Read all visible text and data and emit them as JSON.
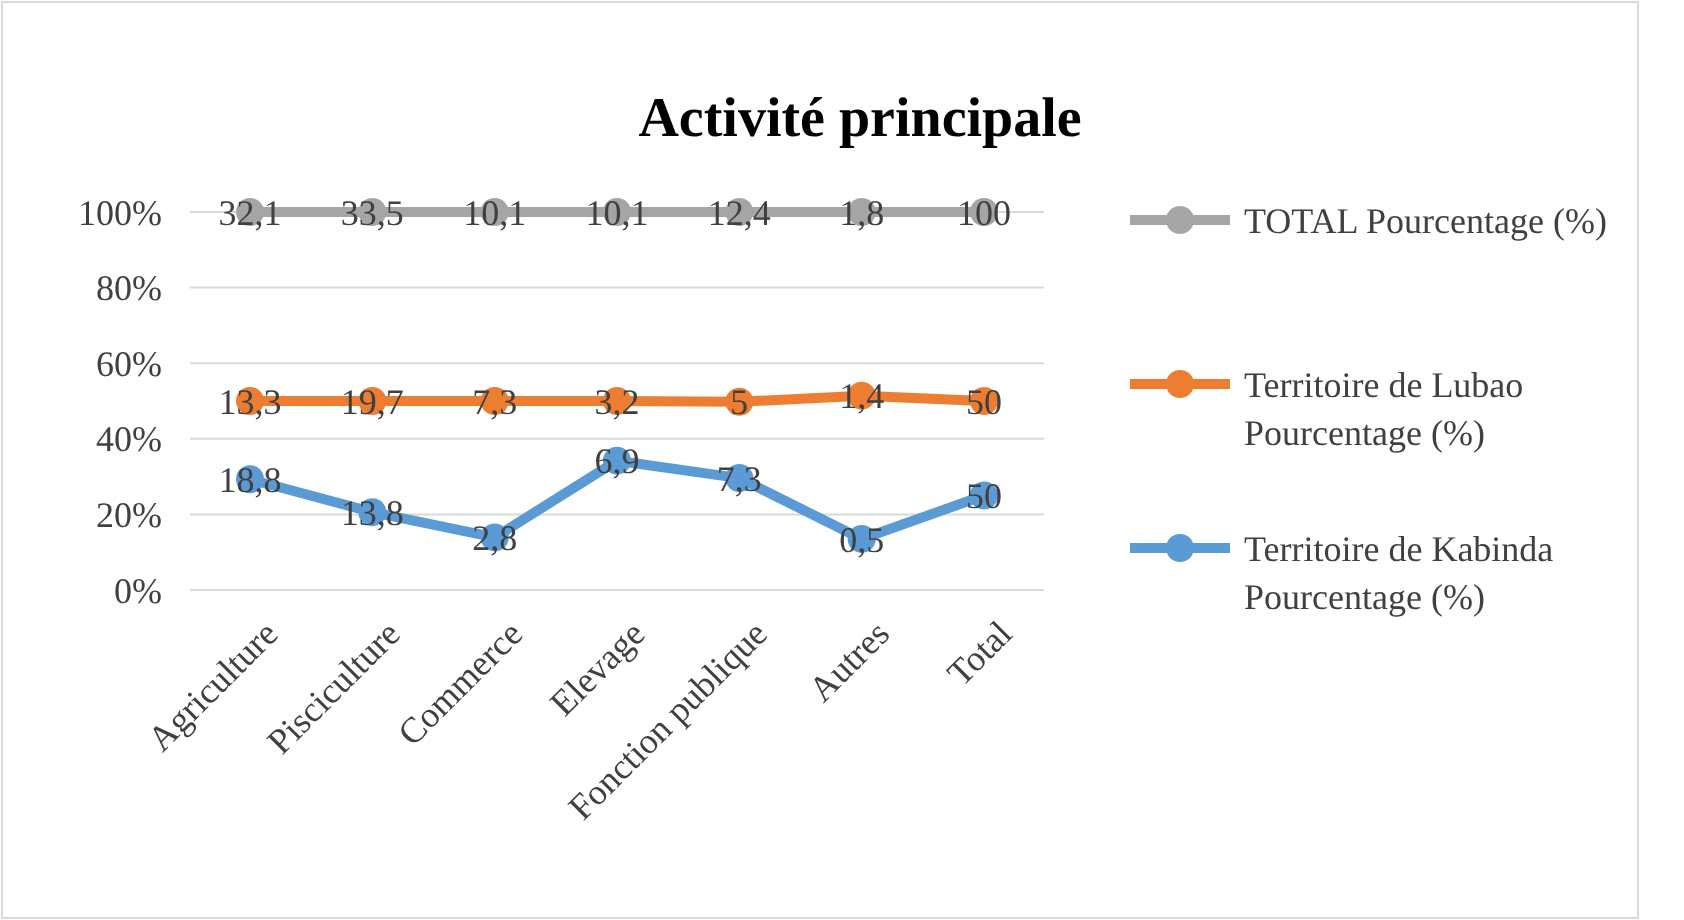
{
  "chart_data": {
    "type": "line",
    "title": "Activité principale",
    "categories": [
      "Agriculture",
      "Pisciculture",
      "Commerce",
      "Elevage",
      "Fonction publique",
      "Autres",
      "Total"
    ],
    "series": [
      {
        "name": "TOTAL Pourcentage (%)",
        "color": "#a5a5a5",
        "values": [
          100,
          100,
          100,
          100,
          100,
          100,
          100
        ]
      },
      {
        "name": "Territoire de Lubao Pourcentage (%)",
        "color": "#ed7d31",
        "values": [
          50,
          50,
          50,
          50,
          49.8,
          51.4,
          50
        ]
      },
      {
        "name": "Territoire de Kabinda Pourcentage (%)",
        "color": "#5b9bd5",
        "values": [
          29.3,
          20.6,
          13.9,
          34.2,
          29.6,
          13.5,
          25
        ]
      }
    ],
    "annotations": [
      {
        "text": "32,1",
        "x": "Agriculture",
        "y": 100
      },
      {
        "text": "33,5",
        "x": "Pisciculture",
        "y": 100
      },
      {
        "text": "10,1",
        "x": "Commerce",
        "y": 100
      },
      {
        "text": "10,1",
        "x": "Elevage",
        "y": 100
      },
      {
        "text": "12,4",
        "x": "Fonction publique",
        "y": 100
      },
      {
        "text": "1,8",
        "x": "Autres",
        "y": 100
      },
      {
        "text": "100",
        "x": "Total",
        "y": 100
      },
      {
        "text": "13,3",
        "x": "Agriculture",
        "y": 50
      },
      {
        "text": "19,7",
        "x": "Pisciculture",
        "y": 50
      },
      {
        "text": "7,3",
        "x": "Commerce",
        "y": 50
      },
      {
        "text": "3,2",
        "x": "Elevage",
        "y": 50
      },
      {
        "text": "5",
        "x": "Fonction publique",
        "y": 49.8
      },
      {
        "text": "1,4",
        "x": "Autres",
        "y": 51.4
      },
      {
        "text": "50",
        "x": "Total",
        "y": 50
      },
      {
        "text": "18,8",
        "x": "Agriculture",
        "y": 29.3
      },
      {
        "text": "13,8",
        "x": "Pisciculture",
        "y": 20.6
      },
      {
        "text": "2,8",
        "x": "Commerce",
        "y": 13.9
      },
      {
        "text": "6,9",
        "x": "Elevage",
        "y": 34.2
      },
      {
        "text": "7,3",
        "x": "Fonction publique",
        "y": 29.6
      },
      {
        "text": "0,5",
        "x": "Autres",
        "y": 13.5
      },
      {
        "text": "50",
        "x": "Total",
        "y": 25
      }
    ],
    "ylim": [
      0,
      100
    ],
    "yticks": [
      {
        "value": 0,
        "label": "0%"
      },
      {
        "value": 20,
        "label": "20%"
      },
      {
        "value": 40,
        "label": "40%"
      },
      {
        "value": 60,
        "label": "60%"
      },
      {
        "value": 80,
        "label": "80%"
      },
      {
        "value": 100,
        "label": "100%"
      }
    ],
    "grid": "y",
    "legend": "right",
    "marker": "circle",
    "line_style": "solid"
  }
}
